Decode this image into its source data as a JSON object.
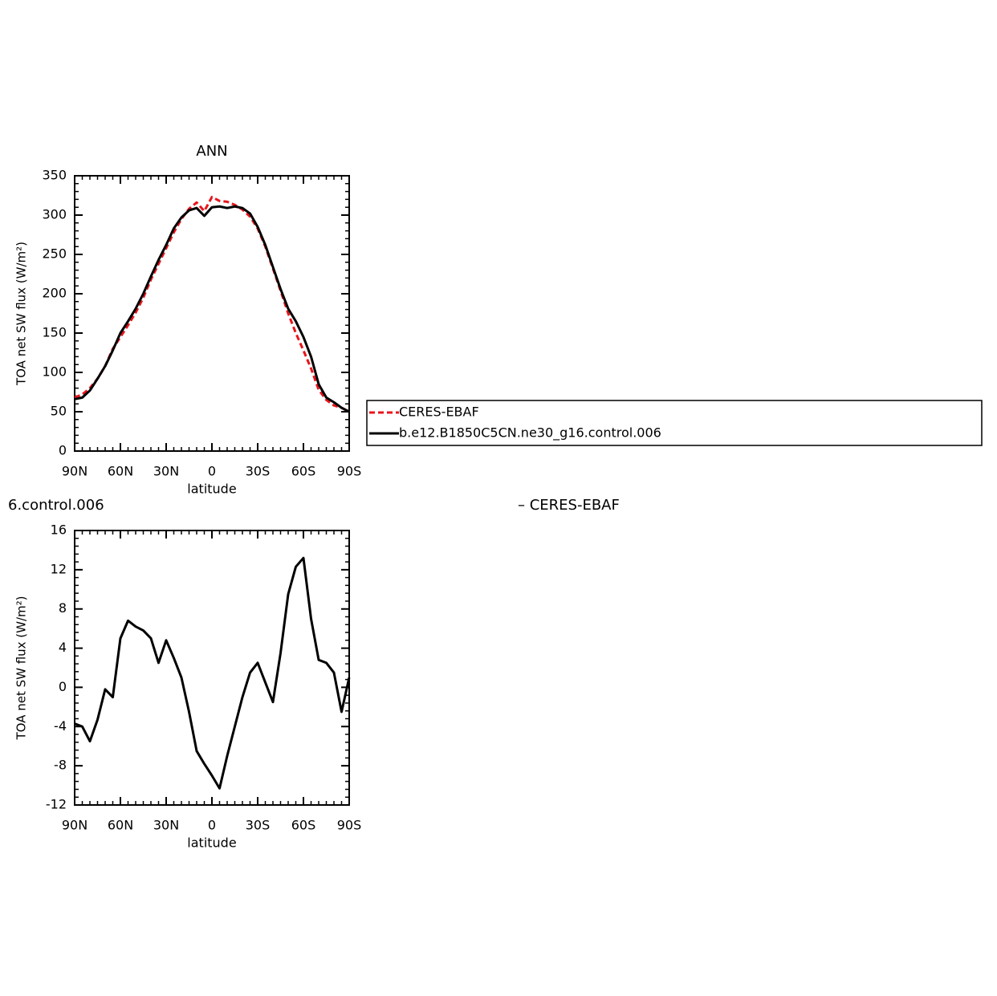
{
  "chart_data": [
    {
      "type": "line",
      "title": "ANN",
      "y_label": "TOA net SW flux (W/m²)",
      "x_label": "latitude",
      "x": [
        90,
        85,
        80,
        75,
        70,
        65,
        60,
        55,
        50,
        45,
        40,
        35,
        30,
        25,
        20,
        15,
        10,
        5,
        0,
        -5,
        -10,
        -15,
        -20,
        -25,
        -30,
        -35,
        -40,
        -45,
        -50,
        -55,
        -60,
        -65,
        -70,
        -75,
        -80,
        -85,
        -90
      ],
      "series": [
        {
          "name": "CERES-EBAF",
          "color": "#e8141c",
          "dashed": true,
          "values": [
            68,
            72,
            80,
            92,
            108,
            130,
            145,
            160,
            176,
            195,
            218,
            238,
            258,
            278,
            295,
            308,
            316,
            305,
            323,
            318,
            317,
            313,
            307,
            298,
            283,
            260,
            232,
            204,
            175,
            150,
            128,
            105,
            78,
            65,
            58,
            55,
            50
          ]
        },
        {
          "name": "b.e12.B1850C5CN.ne30_g16.control.006",
          "color": "#000000",
          "dashed": false,
          "values": [
            66,
            68,
            77,
            92,
            108,
            128,
            150,
            165,
            181,
            200,
            222,
            243,
            262,
            283,
            297,
            306,
            309,
            299,
            310,
            311,
            309,
            311,
            309,
            302,
            285,
            262,
            234,
            206,
            181,
            165,
            145,
            120,
            85,
            68,
            62,
            55,
            50
          ]
        }
      ],
      "xlim": [
        90,
        -90
      ],
      "xticks": [
        {
          "value": 90,
          "label": "90N"
        },
        {
          "value": 60,
          "label": "60N"
        },
        {
          "value": 30,
          "label": "30N"
        },
        0,
        {
          "value": -30,
          "label": "30S"
        },
        {
          "value": -60,
          "label": "60S"
        },
        {
          "value": -90,
          "label": "90S"
        }
      ],
      "ylim": [
        0,
        350
      ],
      "yticks": [
        0,
        50,
        100,
        150,
        200,
        250,
        300,
        350
      ],
      "legend": "right",
      "grid": false
    },
    {
      "type": "line",
      "annotations": [
        "6.control.006",
        "– CERES-EBAF"
      ],
      "y_label": "TOA net SW flux (W/m²)",
      "x_label": "latitude",
      "x": [
        90,
        85,
        80,
        75,
        70,
        65,
        60,
        55,
        50,
        45,
        40,
        35,
        30,
        25,
        20,
        15,
        10,
        5,
        0,
        -5,
        -10,
        -15,
        -20,
        -25,
        -30,
        -35,
        -40,
        -45,
        -50,
        -55,
        -60,
        -65,
        -70,
        -75,
        -80,
        -85,
        -90
      ],
      "series": [
        {
          "color": "#000000",
          "dashed": false,
          "values": [
            -3.7,
            -4.0,
            -5.5,
            -3.3,
            -0.2,
            -1.0,
            5.0,
            6.8,
            6.2,
            5.8,
            5.0,
            2.5,
            4.8,
            3.0,
            1.0,
            -2.5,
            -6.5,
            -7.8,
            -9.0,
            -10.3,
            -7.0,
            -4.0,
            -1.0,
            1.5,
            2.5,
            0.5,
            -1.5,
            3.5,
            9.5,
            12.3,
            13.2,
            7.0,
            2.8,
            2.5,
            1.5,
            -2.5,
            1.0
          ]
        }
      ],
      "xlim": [
        90,
        -90
      ],
      "xticks": [
        {
          "value": 90,
          "label": "90N"
        },
        {
          "value": 60,
          "label": "60N"
        },
        {
          "value": 30,
          "label": "30N"
        },
        0,
        {
          "value": -30,
          "label": "30S"
        },
        {
          "value": -60,
          "label": "60S"
        },
        {
          "value": -90,
          "label": "90S"
        }
      ],
      "ylim": [
        -12,
        16
      ],
      "yticks": [
        -12,
        -8,
        -4,
        0,
        4,
        8,
        12,
        16
      ],
      "grid": false
    }
  ]
}
